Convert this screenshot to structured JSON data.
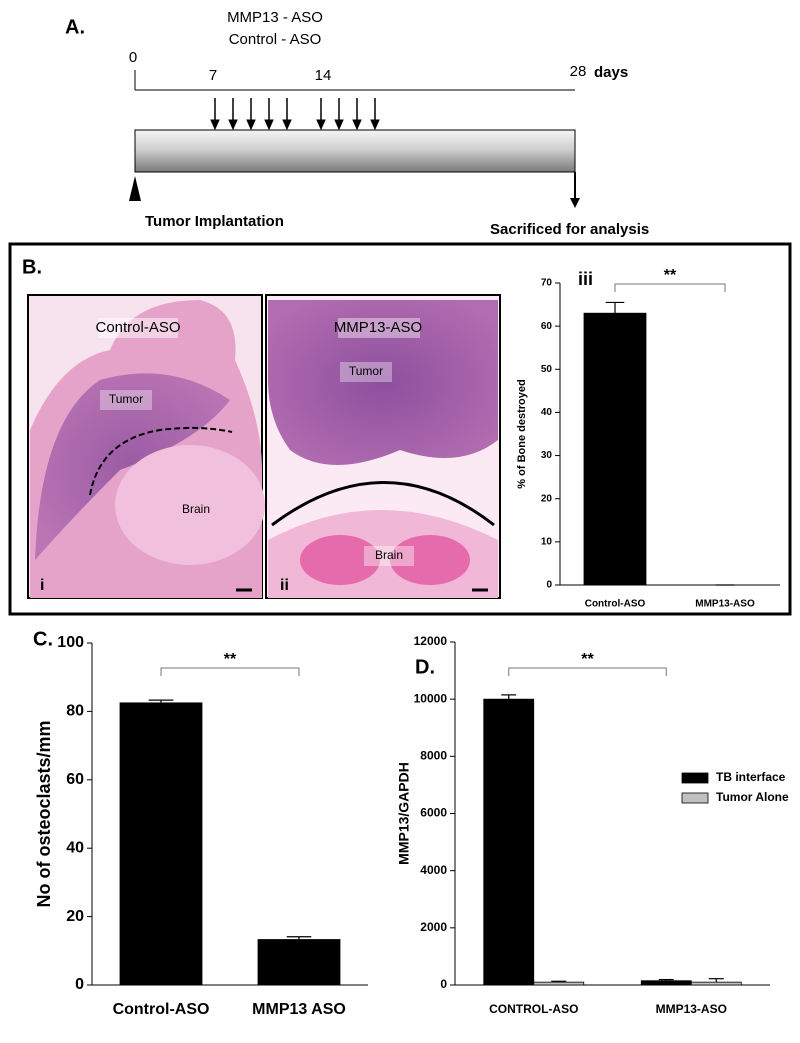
{
  "panel_labels": [
    "A.",
    "B.",
    "C.",
    "D."
  ],
  "timeline": {
    "treatments": [
      "MMP13 - ASO",
      "Control - ASO"
    ],
    "day_labels": [
      "0",
      "7",
      "14",
      "28"
    ],
    "unit": "days",
    "start": "Tumor Implantation",
    "end": "Sacrificed for analysis"
  },
  "histology": {
    "panels": [
      {
        "title": "Control-ASO",
        "labels": [
          "Tumor",
          "Brain"
        ],
        "numeral": "i"
      },
      {
        "title": "MMP13-ASO",
        "labels": [
          "Tumor",
          "Brain"
        ],
        "numeral": "ii"
      }
    ]
  },
  "chart_data": [
    {
      "type": "bar",
      "panel_numeral": "iii",
      "y_label": "% of Bone destroyed",
      "categories": [
        "Control-ASO",
        "MMP13-ASO"
      ],
      "values": [
        63,
        0
      ],
      "errors": [
        2.5,
        0
      ],
      "color": "#000000",
      "ylim": [
        0,
        70
      ],
      "yticks": [
        0,
        10,
        20,
        30,
        40,
        50,
        60,
        70
      ],
      "annotation": "**"
    },
    {
      "type": "bar",
      "y_label": "No of osteoclasts/mm",
      "categories": [
        "Control-ASO",
        "MMP13 ASO"
      ],
      "values": [
        82.5,
        13.3
      ],
      "errors": [
        0.8,
        0.8
      ],
      "color": "#000000",
      "ylim": [
        0,
        100
      ],
      "yticks": [
        0,
        20,
        40,
        60,
        80,
        100
      ],
      "annotation": "**"
    },
    {
      "type": "bar",
      "y_label": "MMP13/GAPDH",
      "categories": [
        "CONTROL-ASO",
        "MMP13-ASO"
      ],
      "series": [
        {
          "name": "TB interface",
          "color": "#000000",
          "values": [
            10000,
            150
          ],
          "errors": [
            150,
            40
          ]
        },
        {
          "name": "Tumor Alone",
          "color": "#c0c0c0",
          "values": [
            100,
            100
          ],
          "errors": [
            30,
            120
          ]
        }
      ],
      "ylim": [
        0,
        12000
      ],
      "yticks": [
        0,
        2000,
        4000,
        6000,
        8000,
        10000,
        12000
      ],
      "annotation": "**"
    }
  ]
}
